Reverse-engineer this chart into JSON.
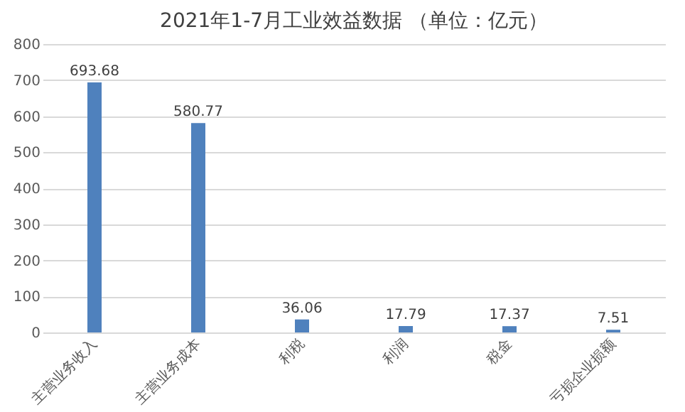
{
  "chart_data": {
    "type": "bar",
    "title": "2021年1-7月工业效益数据 （单位：亿元）",
    "categories": [
      "主营业务收入",
      "主营业务成本",
      "利税",
      "利润",
      "税金",
      "亏损企业损额"
    ],
    "values": [
      693.68,
      580.77,
      36.06,
      17.79,
      17.37,
      7.51
    ],
    "color": "#4f81bd",
    "ylim": [
      0,
      800
    ],
    "yticks": [
      0,
      100,
      200,
      300,
      400,
      500,
      600,
      700,
      800
    ],
    "grid": "y",
    "data_labels": true
  }
}
